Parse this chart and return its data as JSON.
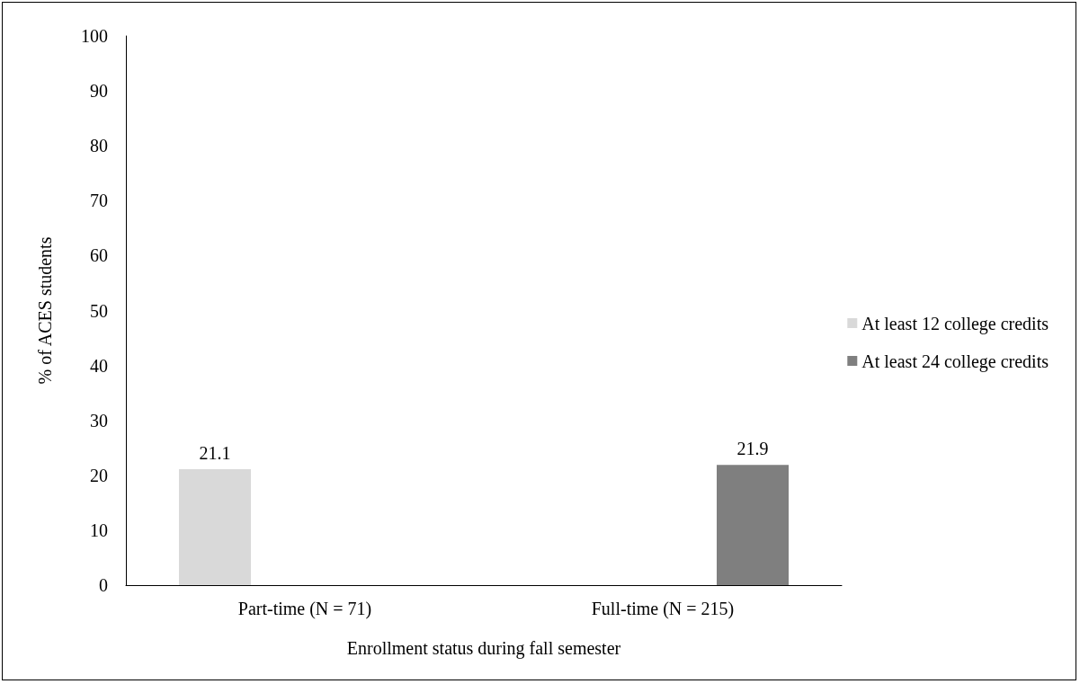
{
  "chart_data": {
    "type": "bar",
    "xlabel": "Enrollment status during fall semester",
    "ylabel": "% of ACES students",
    "categories": [
      "Part-time (N = 71)",
      "Full-time (N = 215)"
    ],
    "series": [
      {
        "name": "At least 12 college credits",
        "color": "#d9d9d9",
        "values": [
          21.1,
          null
        ]
      },
      {
        "name": "At least 24 college credits",
        "color": "#7f7f7f",
        "values": [
          null,
          21.9
        ]
      }
    ],
    "ylim": [
      0,
      100
    ],
    "yticks": [
      0,
      10,
      20,
      30,
      40,
      50,
      60,
      70,
      80,
      90,
      100
    ],
    "grid": false,
    "legend": "right",
    "data_labels": true
  }
}
